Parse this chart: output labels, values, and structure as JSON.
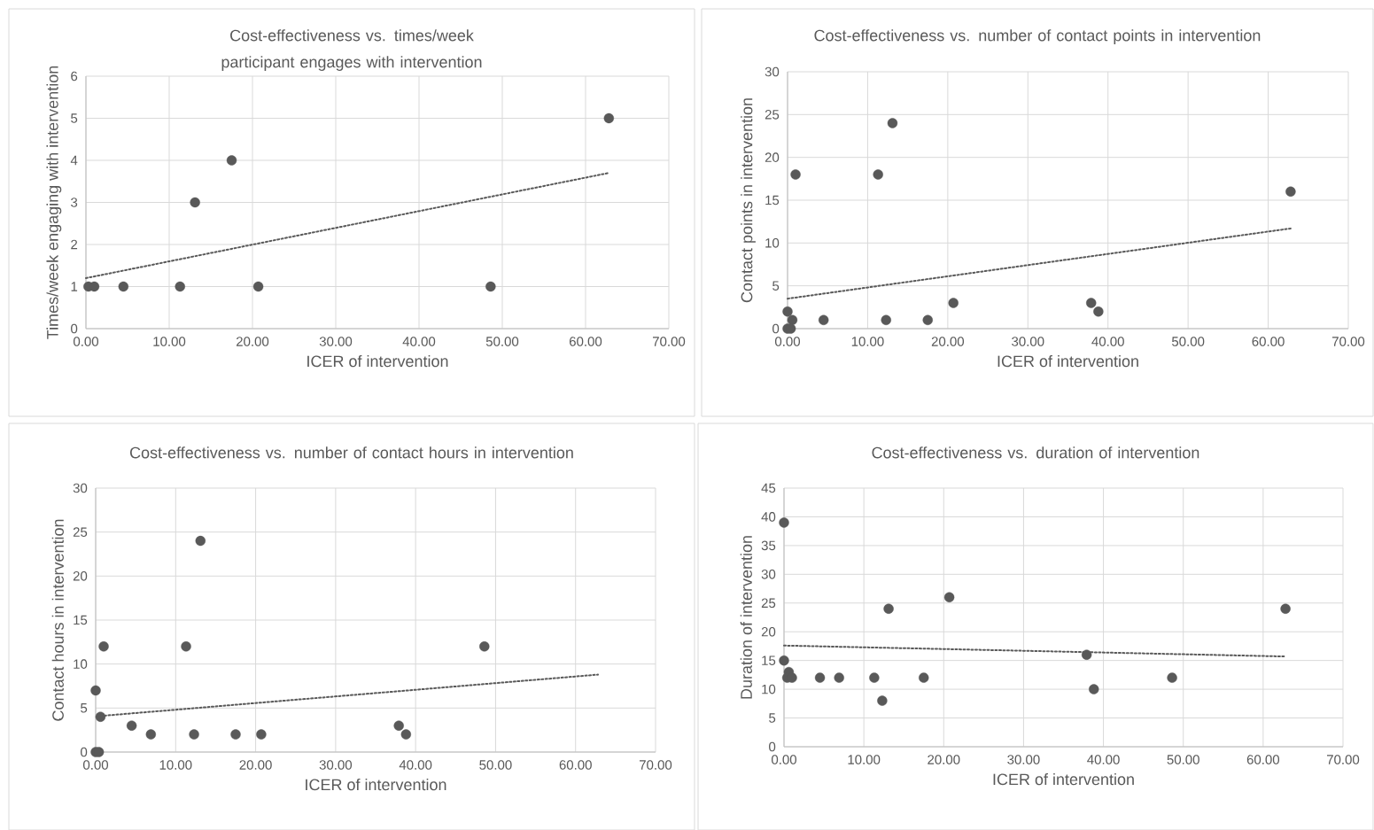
{
  "chart_data": [
    {
      "type": "scatter",
      "title": "Cost-effectiveness vs. times/week participant engages with intervention",
      "xlabel": "ICER of intervention",
      "ylabel": "Times/week engaging with intervention",
      "xlim": [
        0,
        70
      ],
      "ylim": [
        0,
        6
      ],
      "xticks": [
        {
          "value": 0,
          "label": "0.00"
        },
        {
          "value": 10,
          "label": "10.00"
        },
        {
          "value": 20,
          "label": "20.00"
        },
        {
          "value": 30,
          "label": "30.00"
        },
        {
          "value": 40,
          "label": "40.00"
        },
        {
          "value": 50,
          "label": "50.00"
        },
        {
          "value": 60,
          "label": "60.00"
        },
        {
          "value": 70,
          "label": "70.00"
        }
      ],
      "yticks": [
        0,
        1,
        2,
        3,
        4,
        5,
        6
      ],
      "grid": true,
      "series": [
        {
          "type": "scatter",
          "marker": "circle",
          "color": "#595959",
          "x": [
            0.3,
            1.0,
            4.5,
            11.3,
            13.1,
            17.5,
            20.7,
            48.6,
            62.8
          ],
          "values": [
            1,
            1,
            1,
            1,
            3,
            4,
            1,
            1,
            5
          ]
        },
        {
          "type": "line",
          "color": "#595959",
          "line_style": "dotted",
          "marker": "none",
          "x": [
            0,
            62.8
          ],
          "values": [
            1.2,
            3.7
          ]
        }
      ]
    },
    {
      "type": "scatter",
      "title": "Cost-effectiveness vs. number of contact points in intervention",
      "xlabel": "ICER of intervention",
      "ylabel": "Contact points in intervention",
      "xlim": [
        0,
        70
      ],
      "ylim": [
        0,
        30
      ],
      "xticks": [
        {
          "value": 0,
          "label": "0.00"
        },
        {
          "value": 10,
          "label": "10.00"
        },
        {
          "value": 20,
          "label": "20.00"
        },
        {
          "value": 30,
          "label": "30.00"
        },
        {
          "value": 40,
          "label": "40.00"
        },
        {
          "value": 50,
          "label": "50.00"
        },
        {
          "value": 60,
          "label": "60.00"
        },
        {
          "value": 70,
          "label": "70.00"
        }
      ],
      "yticks": [
        0,
        5,
        10,
        15,
        20,
        25,
        30
      ],
      "grid": true,
      "series": [
        {
          "type": "scatter",
          "marker": "circle",
          "color": "#595959",
          "x": [
            0,
            0.6,
            1.0,
            0,
            0.4,
            4.5,
            11.3,
            12.3,
            13.1,
            17.5,
            20.7,
            37.9,
            38.8,
            62.8
          ],
          "values": [
            2,
            1,
            18,
            0,
            0,
            1,
            18,
            1,
            24,
            1,
            3,
            3,
            2,
            16
          ]
        },
        {
          "type": "line",
          "color": "#595959",
          "line_style": "dotted",
          "marker": "none",
          "x": [
            0,
            62.8
          ],
          "values": [
            3.5,
            11.7
          ]
        }
      ]
    },
    {
      "type": "scatter",
      "title": "Cost-effectiveness vs. number of contact hours in intervention",
      "xlabel": "ICER of intervention",
      "ylabel": "Contact hours in intervention",
      "xlim": [
        0,
        70
      ],
      "ylim": [
        0,
        30
      ],
      "xticks": [
        {
          "value": 0,
          "label": "0.00"
        },
        {
          "value": 10,
          "label": "10.00"
        },
        {
          "value": 20,
          "label": "20.00"
        },
        {
          "value": 30,
          "label": "30.00"
        },
        {
          "value": 40,
          "label": "40.00"
        },
        {
          "value": 50,
          "label": "50.00"
        },
        {
          "value": 60,
          "label": "60.00"
        },
        {
          "value": 70,
          "label": "70.00"
        }
      ],
      "yticks": [
        0,
        5,
        10,
        15,
        20,
        25,
        30
      ],
      "grid": true,
      "series": [
        {
          "type": "scatter",
          "marker": "circle",
          "color": "#595959",
          "x": [
            0,
            0.6,
            1.0,
            0,
            0.4,
            4.5,
            6.9,
            11.3,
            12.3,
            13.1,
            17.5,
            20.7,
            37.9,
            38.8,
            48.6
          ],
          "values": [
            7,
            4,
            12,
            0,
            0,
            3,
            2,
            12,
            2,
            24,
            2,
            2,
            3,
            2,
            12
          ]
        },
        {
          "type": "line",
          "color": "#595959",
          "line_style": "dotted",
          "marker": "none",
          "x": [
            0.6,
            62.8
          ],
          "values": [
            4.1,
            8.8
          ]
        }
      ]
    },
    {
      "type": "scatter",
      "title": "Cost-effectiveness vs. duration of intervention",
      "xlabel": "ICER of intervention",
      "ylabel": "Duration of intervention",
      "xlim": [
        0,
        70
      ],
      "ylim": [
        0,
        45
      ],
      "xticks": [
        {
          "value": 0,
          "label": "0.00"
        },
        {
          "value": 10,
          "label": "10.00"
        },
        {
          "value": 20,
          "label": "20.00"
        },
        {
          "value": 30,
          "label": "30.00"
        },
        {
          "value": 40,
          "label": "40.00"
        },
        {
          "value": 50,
          "label": "50.00"
        },
        {
          "value": 60,
          "label": "60.00"
        },
        {
          "value": 70,
          "label": "70.00"
        }
      ],
      "yticks": [
        0,
        5,
        10,
        15,
        20,
        25,
        30,
        35,
        40,
        45
      ],
      "grid": true,
      "series": [
        {
          "type": "scatter",
          "marker": "circle",
          "color": "#595959",
          "x": [
            0,
            0,
            0.6,
            0.4,
            1.0,
            4.5,
            6.9,
            11.3,
            12.3,
            13.1,
            17.5,
            20.7,
            37.9,
            38.8,
            48.6,
            62.8
          ],
          "values": [
            39,
            15,
            13,
            12,
            12,
            12,
            12,
            12,
            8,
            24,
            12,
            26,
            16,
            10,
            12,
            24
          ]
        },
        {
          "type": "line",
          "color": "#595959",
          "line_style": "dotted",
          "marker": "none",
          "x": [
            0,
            62.8
          ],
          "values": [
            17.6,
            15.7
          ]
        }
      ]
    }
  ]
}
